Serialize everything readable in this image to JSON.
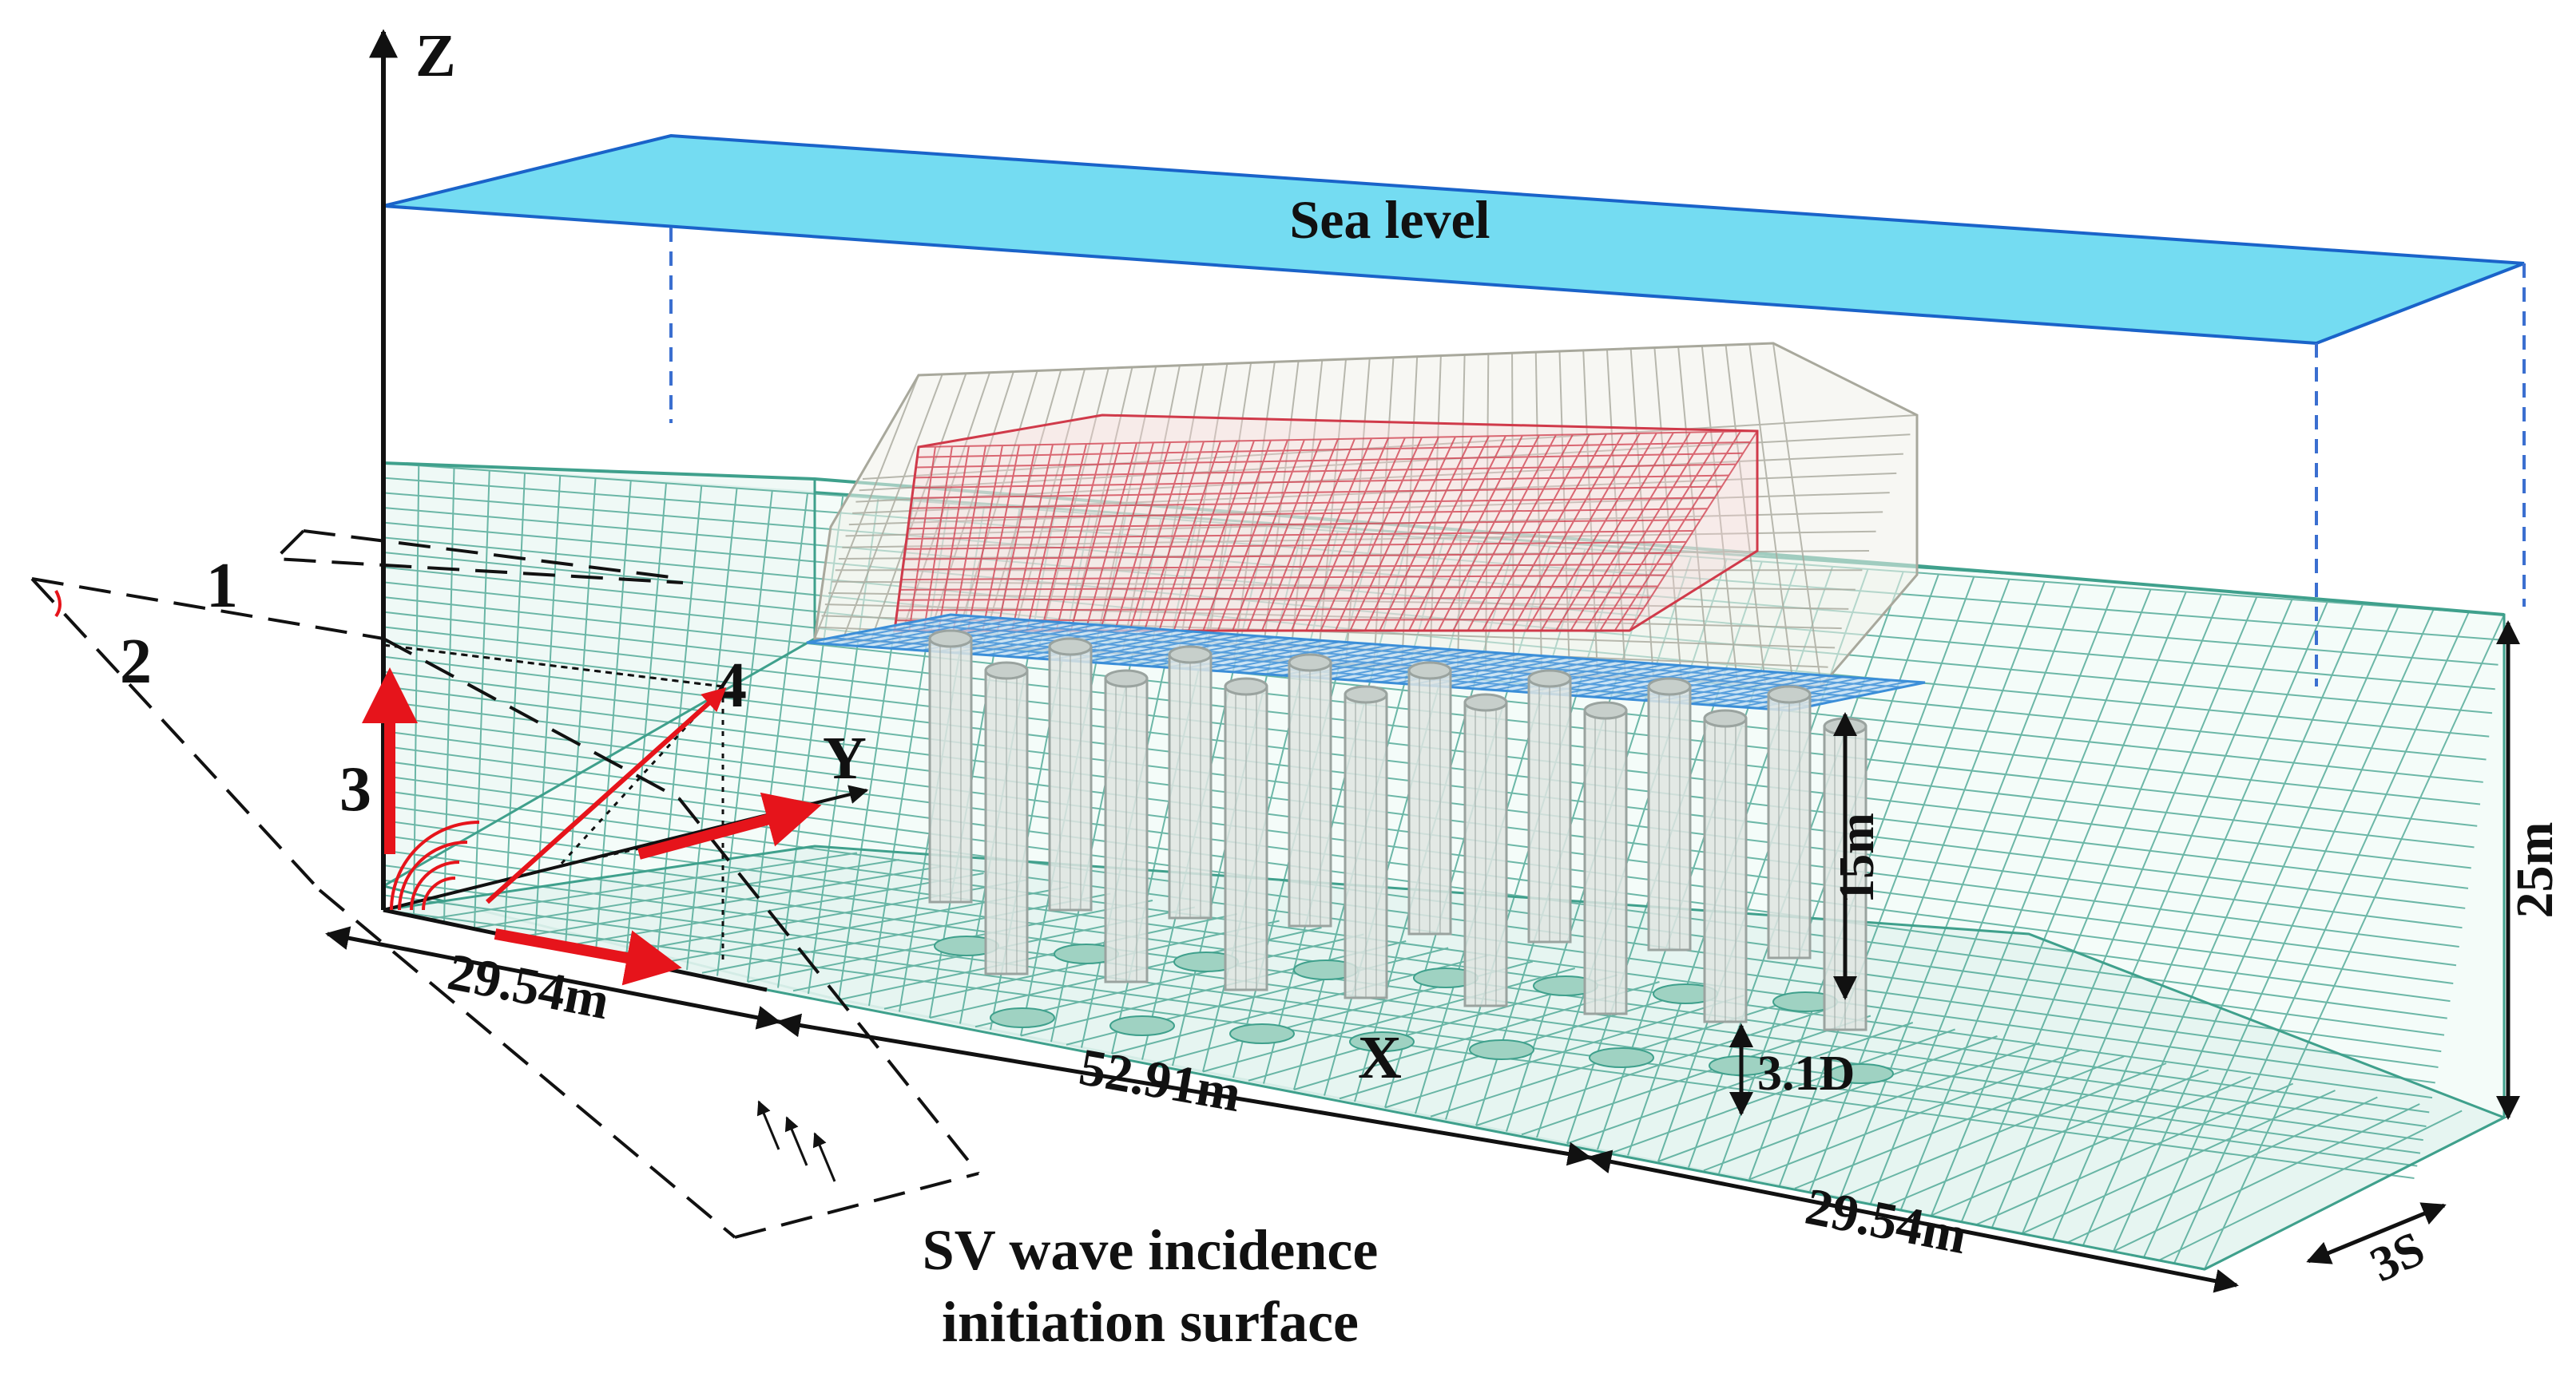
{
  "labels": {
    "sea_level": "Sea level",
    "axis_z": "Z",
    "axis_y": "Y",
    "axis_x": "X",
    "num_1": "1",
    "num_2": "2",
    "num_3": "3",
    "num_4": "4",
    "dim_left": "29.54m",
    "dim_mid": "52.91m",
    "dim_right": "29.54m",
    "dim_height": "25m",
    "dim_pile": "15m",
    "dim_embed": "3.1D",
    "dim_depth": "3S",
    "caption_line1": "SV wave incidence",
    "caption_line2": "initiation surface"
  },
  "colors": {
    "sea": "#74dcf2",
    "sea_edge": "#1a63c9",
    "soil_mesh": "#3fa08c",
    "structure_mesh": "#d03a4a",
    "levee_mesh": "#a8a89c",
    "cap_mesh": "#3b8ed8",
    "pile": "#9aa39f",
    "arrow": "#e6141b"
  },
  "icons": {
    "wave_source": "concentric-arcs-icon",
    "incidence_arrows": "small-arrows-icon"
  }
}
